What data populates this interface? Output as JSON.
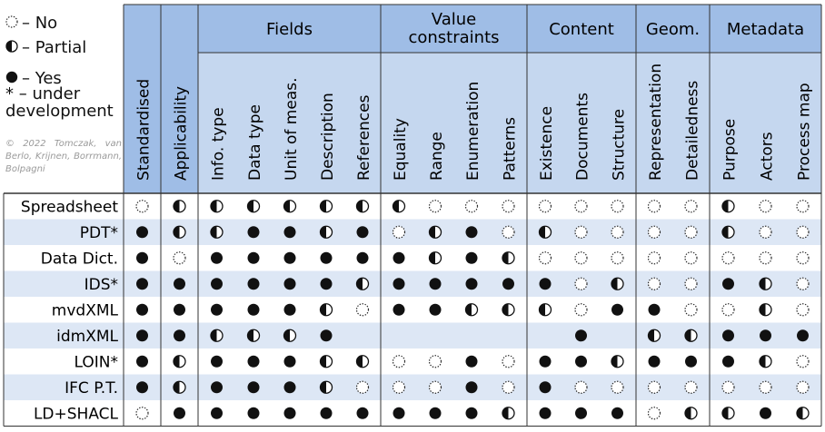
{
  "legend": {
    "items": [
      {
        "symbol": "none",
        "label": "– No"
      },
      {
        "symbol": "partial",
        "label": "– Partial"
      },
      {
        "symbol": "full",
        "label": "– Yes"
      }
    ],
    "dev_marker": "* – under",
    "dev_word": "development",
    "copyright": "© 2022 Tomczak, van Berlo, Krijnen, Borrmann, Bolpagni"
  },
  "colors": {
    "header_bg": "#c5d7ef",
    "stripe_bg": "#dde7f5",
    "dark_header": "#9fbde6",
    "line": "#333333"
  },
  "columns": {
    "single": [
      "Standardised",
      "Applicability"
    ],
    "groups": [
      {
        "title": [
          "Fields"
        ],
        "subs": [
          "Info. type",
          "Data type",
          "Unit of meas.",
          "Description",
          "References"
        ]
      },
      {
        "title": [
          "Value",
          "constraints"
        ],
        "subs": [
          "Equality",
          "Range",
          "Enumeration",
          "Patterns"
        ]
      },
      {
        "title": [
          "Content"
        ],
        "subs": [
          "Existence",
          "Documents",
          "Structure"
        ]
      },
      {
        "title": [
          "Geom."
        ],
        "subs": [
          "Representation",
          "Detailedness"
        ]
      },
      {
        "title": [
          "Metadata"
        ],
        "subs": [
          "Purpose",
          "Actors",
          "Process map"
        ]
      }
    ]
  },
  "rows": [
    {
      "name": "Spreadsheet",
      "values": [
        "N",
        "P",
        "P",
        "P",
        "P",
        "P",
        "P",
        "P",
        "N",
        "N",
        "N",
        "N",
        "N",
        "N",
        "N",
        "N",
        "P",
        "N",
        "N"
      ]
    },
    {
      "name": "PDT*",
      "values": [
        "F",
        "P",
        "P",
        "F",
        "F",
        "P",
        "F",
        "N",
        "P",
        "F",
        "N",
        "P",
        "N",
        "N",
        "N",
        "N",
        "P",
        "N",
        "N"
      ]
    },
    {
      "name": "Data Dict.",
      "values": [
        "F",
        "N",
        "F",
        "F",
        "F",
        "F",
        "F",
        "F",
        "P",
        "F",
        "P",
        "N",
        "N",
        "N",
        "N",
        "N",
        "N",
        "N",
        "N"
      ]
    },
    {
      "name": "IDS*",
      "values": [
        "F",
        "F",
        "F",
        "F",
        "F",
        "F",
        "P",
        "F",
        "F",
        "F",
        "F",
        "F",
        "N",
        "P",
        "N",
        "N",
        "F",
        "P",
        "N"
      ]
    },
    {
      "name": "mvdXML",
      "values": [
        "F",
        "F",
        "F",
        "F",
        "F",
        "P",
        "N",
        "F",
        "F",
        "P",
        "P",
        "P",
        "N",
        "F",
        "F",
        "N",
        "N",
        "P",
        "N"
      ]
    },
    {
      "name": "idmXML",
      "values": [
        "F",
        "F",
        "P",
        "P",
        "P",
        "F",
        "",
        "",
        "",
        "",
        "",
        "",
        "F",
        "",
        "P",
        "P",
        "F",
        "F",
        "F"
      ]
    },
    {
      "name": "LOIN*",
      "values": [
        "F",
        "P",
        "F",
        "F",
        "F",
        "P",
        "P",
        "N",
        "N",
        "F",
        "N",
        "F",
        "F",
        "P",
        "F",
        "F",
        "F",
        "P",
        "N"
      ]
    },
    {
      "name": "IFC P.T.",
      "values": [
        "F",
        "P",
        "F",
        "F",
        "F",
        "P",
        "N",
        "N",
        "N",
        "F",
        "N",
        "F",
        "N",
        "N",
        "N",
        "N",
        "N",
        "N",
        "N"
      ]
    },
    {
      "name": "LD+SHACL",
      "values": [
        "N",
        "F",
        "F",
        "F",
        "F",
        "F",
        "F",
        "F",
        "F",
        "F",
        "P",
        "F",
        "F",
        "F",
        "N",
        "P",
        "P",
        "F",
        "P"
      ]
    }
  ]
}
